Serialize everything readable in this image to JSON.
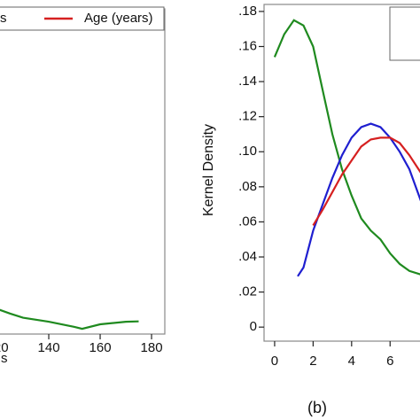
{
  "chart_data": [
    {
      "type": "line",
      "xlabel": "s",
      "xlim": [
        119.3,
        182.4
      ],
      "ylim": [
        0,
        1
      ],
      "xticks": [
        120,
        140,
        160,
        180
      ],
      "series": [
        {
          "name": "s",
          "color": "#1f8a1f",
          "x": [
            119.3,
            125,
            130,
            140,
            150,
            153,
            160,
            170,
            175
          ],
          "values": [
            0.079,
            0.063,
            0.05,
            0.038,
            0.022,
            0.016,
            0.03,
            0.038,
            0.039
          ]
        },
        {
          "name": "Age (years)",
          "color": "#d62020"
        }
      ]
    },
    {
      "type": "line",
      "ylabel": "Kernel Density",
      "caption": "(b)",
      "xlim": [
        -0.55,
        7.6
      ],
      "ylim": [
        -0.008,
        0.184
      ],
      "xticks": [
        0,
        2,
        4,
        6
      ],
      "yticks": [
        0,
        {
          "value": 0.02,
          "label": ".02"
        },
        {
          "value": 0.04,
          "label": ".04"
        },
        {
          "value": 0.06,
          "label": ".06"
        },
        {
          "value": 0.08,
          "label": ".08"
        },
        {
          "value": 0.1,
          "label": ".10"
        },
        {
          "value": 0.12,
          "label": ".12"
        },
        {
          "value": 0.14,
          "label": ".14"
        },
        {
          "value": 0.16,
          "label": ".16"
        },
        {
          "value": 0.18,
          "label": ".18"
        }
      ],
      "series": [
        {
          "color": "#1f8a1f",
          "x": [
            0,
            0.5,
            1,
            1.5,
            2,
            2.5,
            3,
            3.5,
            4,
            4.5,
            5,
            5.5,
            6,
            6.5,
            7,
            7.6
          ],
          "values": [
            0.154,
            0.167,
            0.175,
            0.172,
            0.16,
            0.135,
            0.11,
            0.09,
            0.075,
            0.062,
            0.055,
            0.05,
            0.042,
            0.036,
            0.032,
            0.03
          ]
        },
        {
          "color": "#1f1fd0",
          "x": [
            1.2,
            1.5,
            2,
            2.5,
            3,
            3.5,
            4,
            4.5,
            5,
            5.5,
            6,
            6.5,
            7,
            7.6
          ],
          "values": [
            0.029,
            0.034,
            0.055,
            0.07,
            0.085,
            0.098,
            0.108,
            0.114,
            0.116,
            0.114,
            0.108,
            0.1,
            0.09,
            0.072
          ]
        },
        {
          "color": "#d62020",
          "x": [
            2,
            2.5,
            3,
            3.5,
            4,
            4.5,
            5,
            5.5,
            6,
            6.5,
            7,
            7.6
          ],
          "values": [
            0.058,
            0.067,
            0.077,
            0.087,
            0.095,
            0.103,
            0.107,
            0.108,
            0.108,
            0.105,
            0.098,
            0.088
          ]
        }
      ]
    }
  ]
}
